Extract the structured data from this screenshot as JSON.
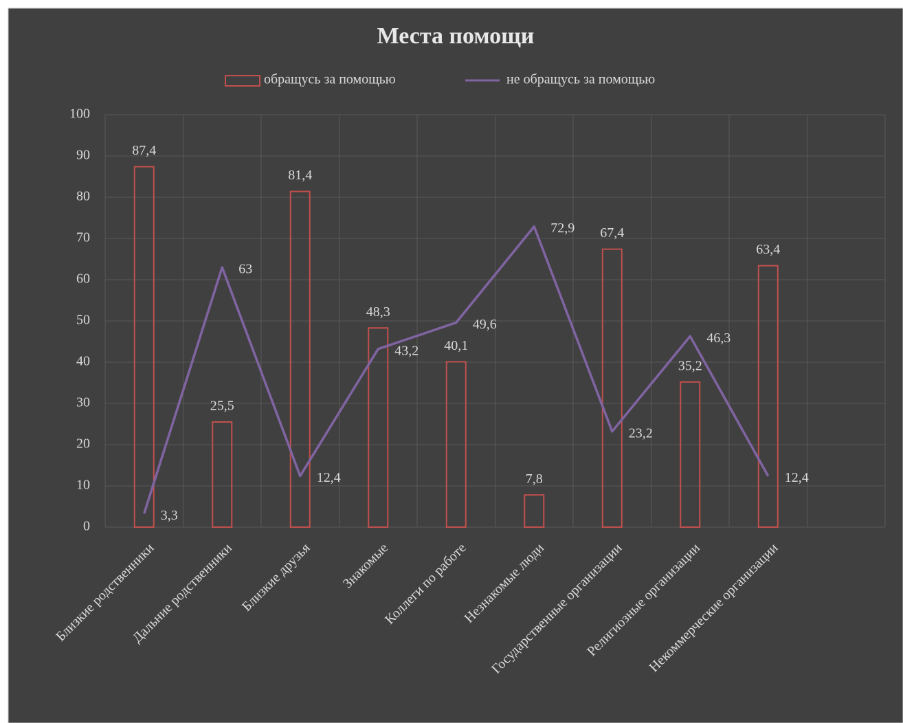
{
  "chart_data": {
    "type": "bar_line",
    "title": "Места помощи",
    "categories": [
      "Близкие родственники",
      "Дальние родственники",
      "Близкие друзья",
      "Знакомые",
      "Коллеги по работе",
      "Незнакомые люди",
      "Государственные организации",
      "Религиозные организации",
      "Некоммерческие организации",
      null
    ],
    "series": [
      {
        "name": "обращусь за помощью",
        "type": "bar",
        "color": "#c0504d",
        "values": [
          87.4,
          25.5,
          81.4,
          48.3,
          40.1,
          7.8,
          67.4,
          35.2,
          63.4,
          null
        ],
        "value_labels": [
          "87,4",
          "25,5",
          "81,4",
          "48,3",
          "40,1",
          "7,8",
          "67,4",
          "35,2",
          "63,4",
          null
        ]
      },
      {
        "name": "не обращусь за помощью",
        "type": "line",
        "color": "#8064a2",
        "values": [
          3.3,
          63,
          12.4,
          43.2,
          49.6,
          72.9,
          23.2,
          46.3,
          12.4,
          null
        ],
        "value_labels": [
          "3,3",
          "63",
          "12,4",
          "43,2",
          "49,6",
          "72,9",
          "23,2",
          "46,3",
          "12,4",
          null
        ]
      }
    ],
    "ylim": [
      0,
      100
    ],
    "yticks": [
      0,
      10,
      20,
      30,
      40,
      50,
      60,
      70,
      80,
      90,
      100
    ],
    "grid": true,
    "legend": "top"
  }
}
